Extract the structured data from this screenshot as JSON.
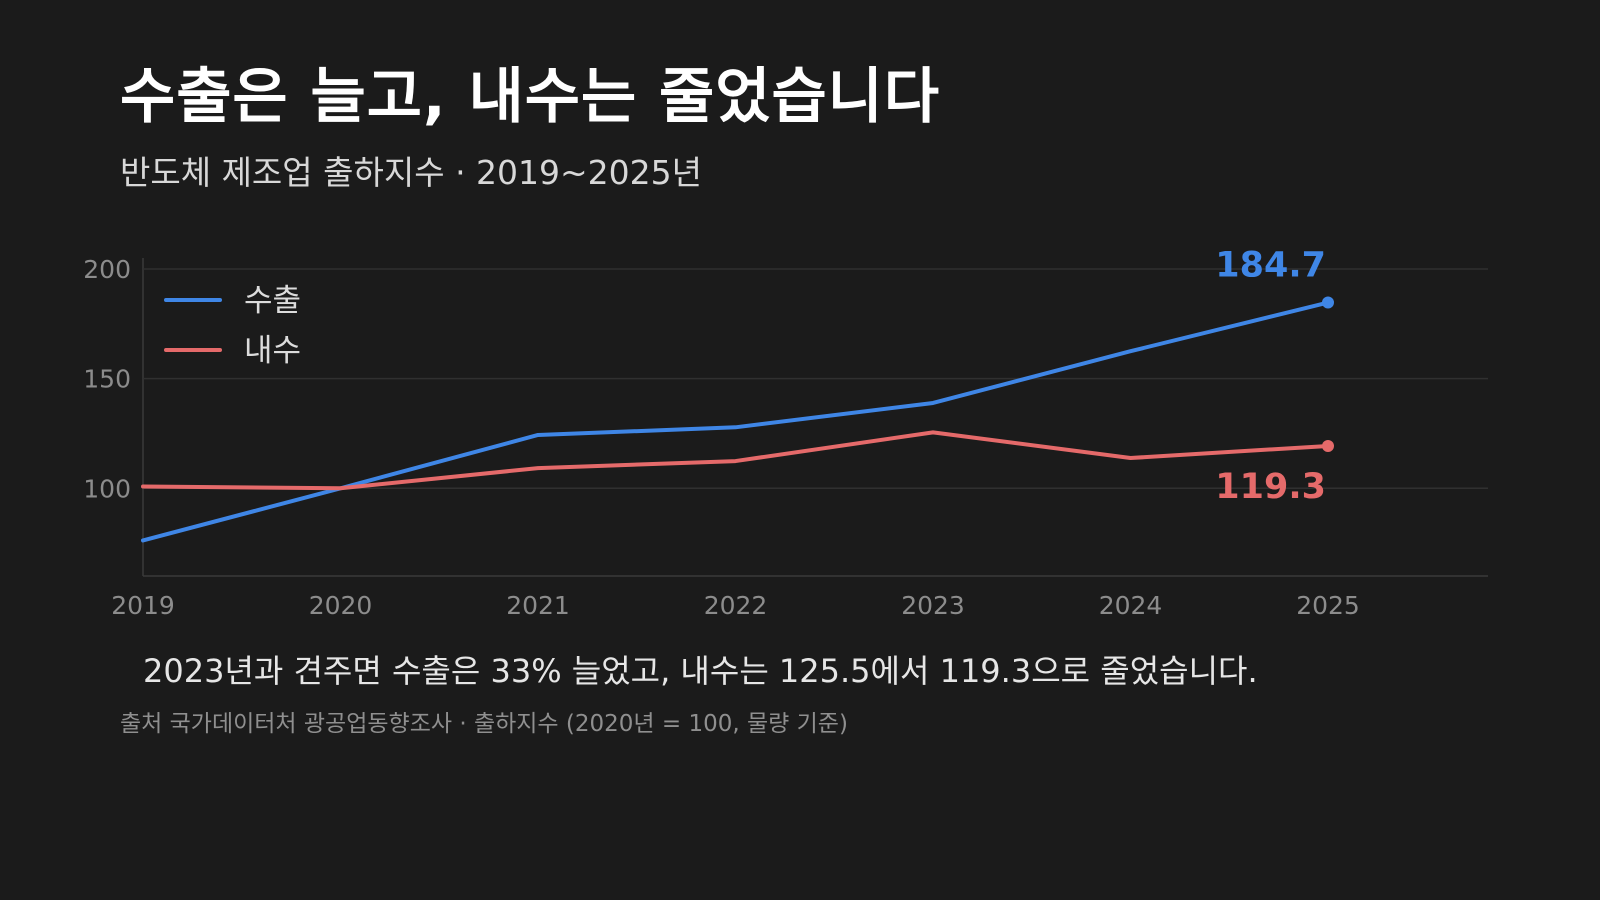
{
  "title": "수출은 늘고, 내수는 줄었습니다",
  "subtitle": "반도체 제조업 출하지수 · 2019~2025년",
  "caption": "2023년과 견주면 수출은 33% 늘었고, 내수는 125.5에서 119.3으로 줄었습니다.",
  "source": "출처 국가데이터처 광공업동향조사 · 출하지수 (2020년 = 100, 물량 기준)",
  "chart_data": {
    "type": "line",
    "x": [
      "2019",
      "2020",
      "2021",
      "2022",
      "2023",
      "2024",
      "2025"
    ],
    "ylim": [
      60,
      205
    ],
    "yticks": [
      100,
      150,
      200
    ],
    "grid": true,
    "legend": "top-left",
    "series": [
      {
        "name": "수출",
        "color": "#3f86e6",
        "values": [
          76.2,
          100,
          124.3,
          127.8,
          138.9,
          162.5,
          184.7
        ],
        "end_label": "184.7"
      },
      {
        "name": "내수",
        "color": "#e56a6a",
        "values": [
          100.8,
          100,
          109.2,
          112.4,
          125.5,
          113.8,
          119.3
        ],
        "end_label": "119.3"
      }
    ]
  }
}
